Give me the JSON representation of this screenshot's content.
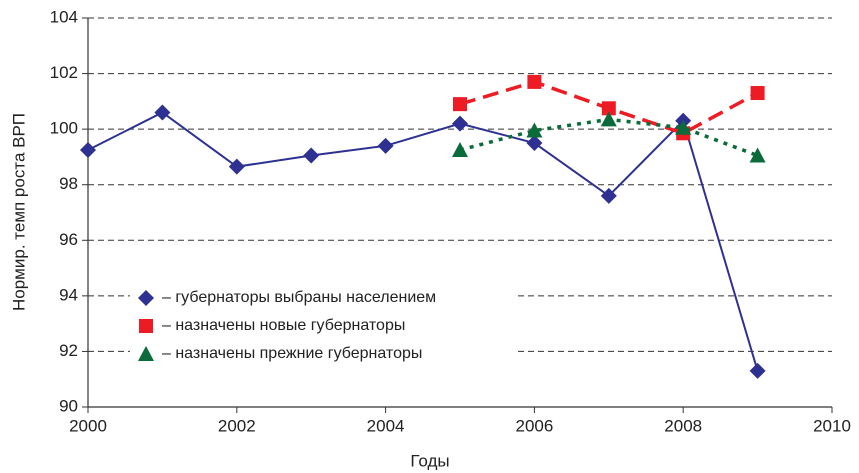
{
  "chart_data": {
    "type": "line",
    "x_label": "Годы",
    "y_label": "Нормир. темп роста ВРП",
    "x": [
      2000,
      2001,
      2002,
      2003,
      2004,
      2005,
      2006,
      2007,
      2008,
      2009
    ],
    "series": [
      {
        "name": "– губернаторы выбраны населением",
        "color": "#2e3192",
        "line_style": "solid",
        "marker": "diamond",
        "values": [
          99.25,
          100.6,
          98.65,
          99.05,
          99.4,
          100.2,
          99.5,
          97.6,
          100.3,
          91.3
        ]
      },
      {
        "name": "– назначены новые губернаторы",
        "color": "#ed1c24",
        "line_style": "dashed",
        "marker": "square",
        "values": [
          null,
          null,
          null,
          null,
          null,
          100.9,
          101.7,
          100.75,
          99.85,
          101.3
        ]
      },
      {
        "name": "– назначены прежние губернаторы",
        "color": "#0b6b3a",
        "line_style": "dotted",
        "marker": "triangle",
        "values": [
          null,
          null,
          null,
          null,
          null,
          99.25,
          99.95,
          100.35,
          100.05,
          99.05
        ]
      }
    ],
    "xlim": [
      2000,
      2010
    ],
    "xticks": [
      2000,
      2002,
      2004,
      2006,
      2008,
      2010
    ],
    "ylim": [
      90,
      104
    ],
    "yticks": [
      90,
      92,
      94,
      96,
      98,
      100,
      102,
      104
    ],
    "grid": true,
    "legend": "lower left"
  }
}
